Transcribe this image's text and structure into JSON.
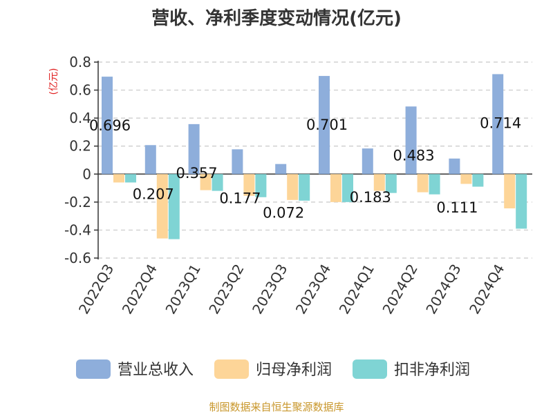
{
  "chart_data": {
    "type": "bar",
    "title": "营收、净利季度变动情况(亿元)",
    "unit_label": "(亿元)",
    "unit_color": "#e02020",
    "categories": [
      "2022Q3",
      "2022Q4",
      "2023Q1",
      "2023Q2",
      "2023Q3",
      "2023Q4",
      "2024Q1",
      "2024Q2",
      "2024Q3",
      "2024Q4"
    ],
    "series": [
      {
        "name": "营业总收入",
        "color": "#8eaedb",
        "values": [
          0.696,
          0.207,
          0.357,
          0.177,
          0.072,
          0.701,
          0.183,
          0.483,
          0.111,
          0.714
        ]
      },
      {
        "name": "归母净利润",
        "color": "#fdd598",
        "values": [
          -0.06,
          -0.46,
          -0.115,
          -0.155,
          -0.185,
          -0.2,
          -0.12,
          -0.13,
          -0.07,
          -0.245
        ]
      },
      {
        "name": "扣非净利润",
        "color": "#7fd4d4",
        "values": [
          -0.06,
          -0.465,
          -0.12,
          -0.165,
          -0.19,
          -0.2,
          -0.135,
          -0.145,
          -0.09,
          -0.39
        ]
      }
    ],
    "data_labels": [
      "0.696",
      "0.207",
      "0.357",
      "0.177",
      "0.072",
      "0.701",
      "0.183",
      "0.483",
      "0.111",
      "0.714"
    ],
    "ylim": [
      -0.6,
      0.8
    ],
    "yticks": [
      "0.8",
      "0.6",
      "0.4",
      "0.2",
      "0",
      "-0.2",
      "-0.4",
      "-0.6"
    ],
    "ytick_values": [
      0.8,
      0.6,
      0.4,
      0.2,
      0,
      -0.2,
      -0.4,
      -0.6
    ],
    "grid": true,
    "legend_position": "bottom"
  },
  "source_text": "制图数据来自恒生聚源数据库",
  "source_color": "#c8962a"
}
